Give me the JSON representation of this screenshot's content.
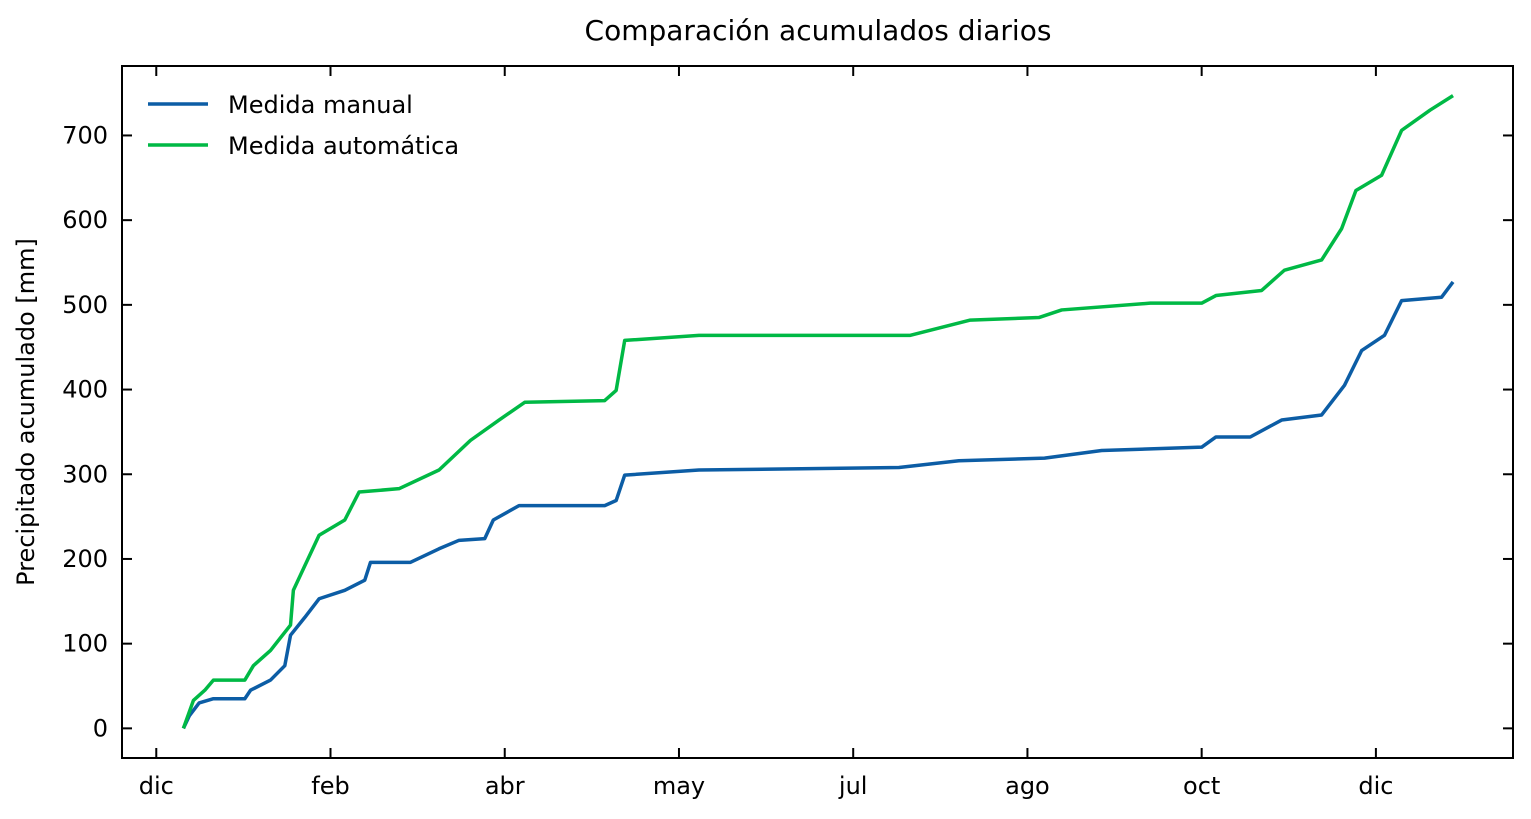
{
  "chart_data": {
    "type": "line",
    "title": "Comparación acumulados diarios",
    "y_label": "Precipitado acumulado [mm]",
    "xlim": [
      -12,
      475
    ],
    "xticks": [
      {
        "value": 0,
        "label": "dic"
      },
      {
        "value": 61,
        "label": "feb"
      },
      {
        "value": 122,
        "label": "abr"
      },
      {
        "value": 183,
        "label": "may"
      },
      {
        "value": 244,
        "label": "jul"
      },
      {
        "value": 305,
        "label": "ago"
      },
      {
        "value": 366,
        "label": "oct"
      },
      {
        "value": 427,
        "label": "dic"
      }
    ],
    "ylim": [
      -35,
      782
    ],
    "yticks": [
      0,
      100,
      200,
      300,
      400,
      500,
      600,
      700
    ],
    "legend": "upper left",
    "series": [
      {
        "name": "Medida manual",
        "color": "#0C5DA5",
        "x": [
          9.5,
          11.6,
          15,
          20,
          31,
          33,
          40,
          45,
          47,
          52,
          57,
          66,
          73,
          75,
          89,
          99,
          106,
          115,
          118,
          127,
          157,
          161,
          164,
          190,
          260,
          281,
          311,
          331,
          366,
          371,
          383,
          394,
          408,
          416,
          422,
          430,
          436,
          450,
          454
        ],
        "values": [
          0,
          15,
          30,
          35,
          35,
          45,
          57,
          74,
          110,
          131,
          153,
          163,
          175,
          196,
          196,
          212,
          222,
          224,
          246,
          263,
          263,
          269,
          299,
          305,
          308,
          316,
          319,
          328,
          332,
          344,
          344,
          364,
          370,
          405,
          446,
          464,
          505,
          509,
          527
        ]
      },
      {
        "name": "Medida automática",
        "color": "#00B945",
        "x": [
          9.5,
          13,
          17,
          20,
          31,
          34,
          40,
          47,
          48,
          52,
          57,
          66,
          71,
          85,
          99,
          110,
          120,
          129,
          157,
          161,
          164,
          190,
          264,
          285,
          309,
          317,
          348,
          366,
          371,
          387,
          395,
          408,
          415,
          420,
          429,
          436,
          446,
          454
        ],
        "values": [
          0,
          33,
          45,
          57,
          57,
          74,
          92,
          122,
          163,
          192,
          228,
          246,
          279,
          283,
          305,
          340,
          364,
          385,
          387,
          399,
          458,
          464,
          464,
          482,
          485,
          494,
          502,
          502,
          511,
          517,
          541,
          553,
          590,
          635,
          653,
          706,
          730,
          747
        ]
      }
    ]
  }
}
